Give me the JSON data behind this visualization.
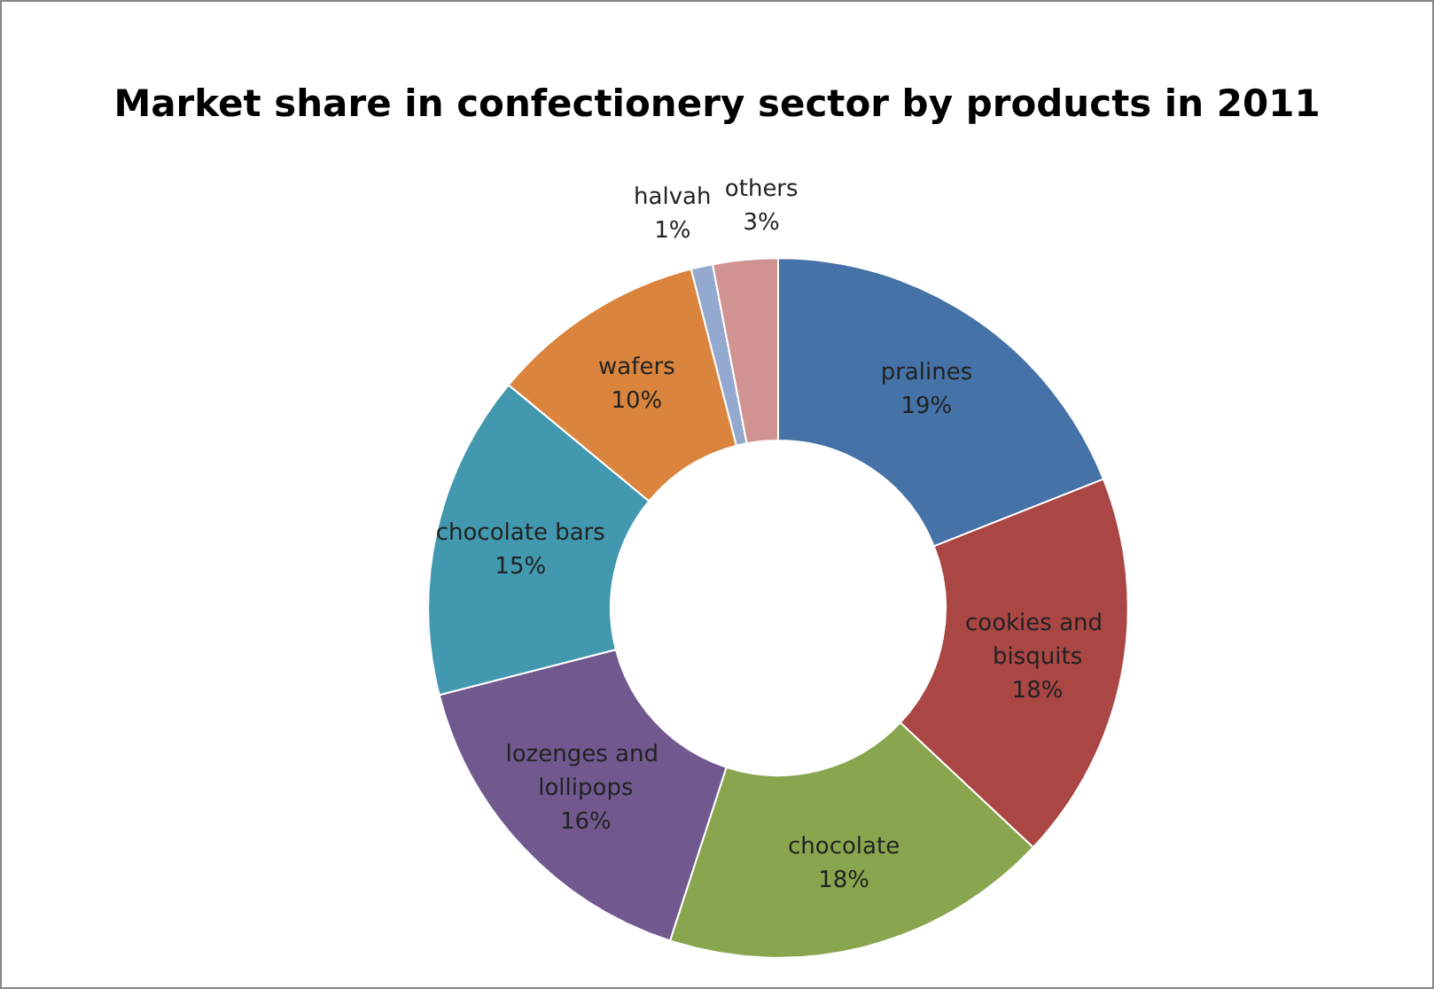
{
  "chart_data": {
    "type": "donut",
    "title": "Market share in confectionery sector by products in 2011",
    "categories": [
      "pralines",
      "cookies and bisquits",
      "chocolate",
      "lozenges and lollipops",
      "chocolate bars",
      "wafers",
      "halvah",
      "others"
    ],
    "values": [
      19,
      18,
      18,
      16,
      15,
      10,
      1,
      3
    ],
    "value_labels": [
      "19%",
      "18%",
      "18%",
      "16%",
      "15%",
      "10%",
      "1%",
      "3%"
    ],
    "colors": [
      "#4572a7",
      "#aa4643",
      "#89a54e",
      "#71588f",
      "#4198af",
      "#db843d",
      "#93a9cf",
      "#d19392"
    ],
    "legend": false
  }
}
